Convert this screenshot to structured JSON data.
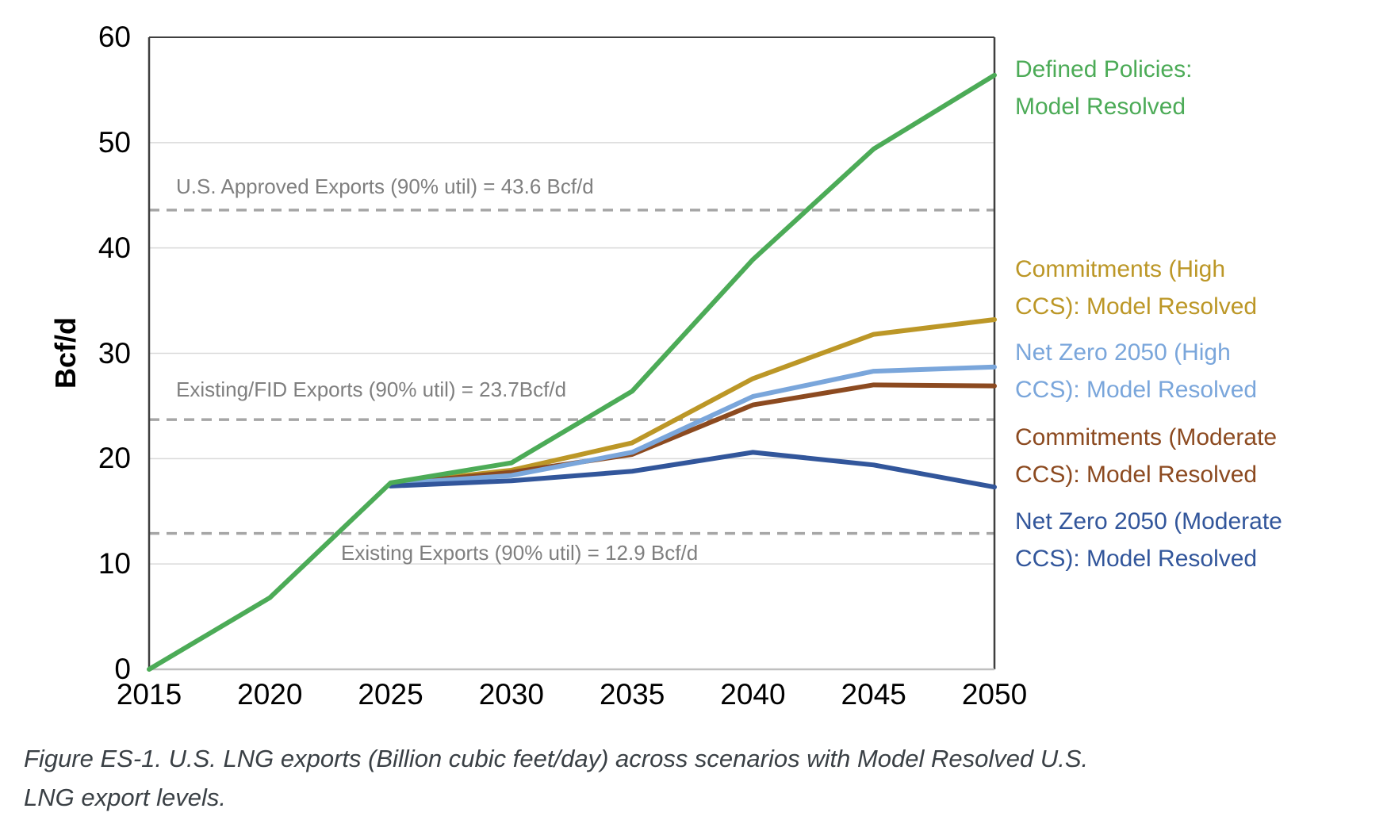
{
  "figure": {
    "caption": "Figure ES-1. U.S. LNG exports (Billion cubic feet/day) across scenarios with Model Resolved U.S. LNG export levels.",
    "caption_lines": [
      "Figure ES-1. U.S. LNG exports (Billion cubic feet/day) across scenarios with Model Resolved U.S.",
      "LNG export levels."
    ]
  },
  "chart_data": {
    "type": "line",
    "title": "",
    "xlabel": "",
    "ylabel": "Bcf/d",
    "x_axis": {
      "ticks": [
        2015,
        2020,
        2025,
        2030,
        2035,
        2040,
        2045,
        2050
      ],
      "range": [
        2015,
        2050
      ]
    },
    "y_axis": {
      "title": "Bcf/d",
      "ticks": [
        0,
        10,
        20,
        30,
        40,
        50,
        60
      ],
      "range": [
        0,
        60
      ]
    },
    "grid": true,
    "legend_position": "right",
    "series": [
      {
        "name": "defined-policies",
        "label": "Defined Policies: Model Resolved",
        "label_lines": [
          "Defined Policies:",
          "Model Resolved"
        ],
        "color": "#4cab57",
        "x": [
          2015,
          2020,
          2025,
          2030,
          2035,
          2040,
          2045,
          2050
        ],
        "values": [
          0,
          6.8,
          17.7,
          19.6,
          26.4,
          38.9,
          49.4,
          56.4
        ]
      },
      {
        "name": "commitments-high-ccs",
        "label": "Commitments (High CCS): Model Resolved",
        "label_lines": [
          "Commitments (High",
          "CCS): Model Resolved"
        ],
        "color": "#bc9727",
        "x": [
          2025,
          2030,
          2035,
          2040,
          2045,
          2050
        ],
        "values": [
          17.6,
          18.9,
          21.5,
          27.6,
          31.8,
          33.2
        ]
      },
      {
        "name": "net-zero-2050-high-ccs",
        "label": "Net Zero 2050 (High CCS): Model Resolved",
        "label_lines": [
          "Net Zero 2050 (High",
          "CCS): Model Resolved"
        ],
        "color": "#7aa6db",
        "x": [
          2025,
          2030,
          2035,
          2040,
          2045,
          2050
        ],
        "values": [
          17.6,
          18.4,
          20.6,
          25.9,
          28.3,
          28.7
        ]
      },
      {
        "name": "commitments-moderate-ccs",
        "label": "Commitments (Moderate CCS): Model Resolved",
        "label_lines": [
          "Commitments (Moderate",
          "CCS): Model Resolved"
        ],
        "color": "#8c4a20",
        "x": [
          2025,
          2030,
          2035,
          2040,
          2045,
          2050
        ],
        "values": [
          17.6,
          18.7,
          20.4,
          25.1,
          27.0,
          26.9
        ]
      },
      {
        "name": "net-zero-2050-moderate-ccs",
        "label": "Net Zero 2050 (Moderate CCS): Model Resolved",
        "label_lines": [
          "Net Zero 2050 (Moderate",
          "CCS): Model Resolved"
        ],
        "color": "#32569b",
        "x": [
          2025,
          2030,
          2035,
          2040,
          2045,
          2050
        ],
        "values": [
          17.4,
          17.9,
          18.8,
          20.6,
          19.4,
          17.3
        ]
      }
    ],
    "reference_lines": [
      {
        "value": 43.6,
        "label": "U.S. Approved Exports (90% util) = 43.6 Bcf/d",
        "style": "dashed",
        "color": "#a6a6a6"
      },
      {
        "value": 23.7,
        "label": "Existing/FID Exports (90% util) = 23.7Bcf/d",
        "style": "dashed",
        "color": "#a6a6a6"
      },
      {
        "value": 12.9,
        "label": "Existing Exports (90% util) = 12.9 Bcf/d",
        "style": "dashed",
        "color": "#a6a6a6"
      }
    ]
  }
}
